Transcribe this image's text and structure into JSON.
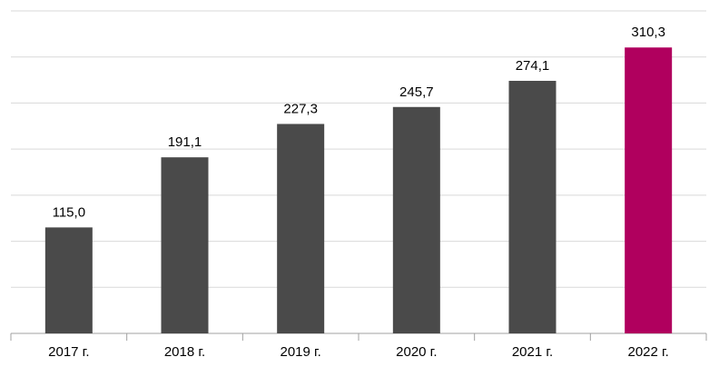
{
  "chart_data": {
    "type": "bar",
    "categories": [
      "2017 г.",
      "2018 г.",
      "2019 г.",
      "2020 г.",
      "2021 г.",
      "2022 г."
    ],
    "values": [
      115.0,
      191.1,
      227.3,
      245.7,
      274.1,
      310.3
    ],
    "value_labels": [
      "115,0",
      "191,1",
      "227,3",
      "245,7",
      "274,1",
      "310,3"
    ],
    "colors": [
      "#4a4a4a",
      "#4a4a4a",
      "#4a4a4a",
      "#4a4a4a",
      "#4a4a4a",
      "#b0005e"
    ],
    "ylim": [
      0,
      350
    ],
    "yticks": [
      0,
      50,
      100,
      150,
      200,
      250,
      300,
      350
    ],
    "grid": true
  }
}
